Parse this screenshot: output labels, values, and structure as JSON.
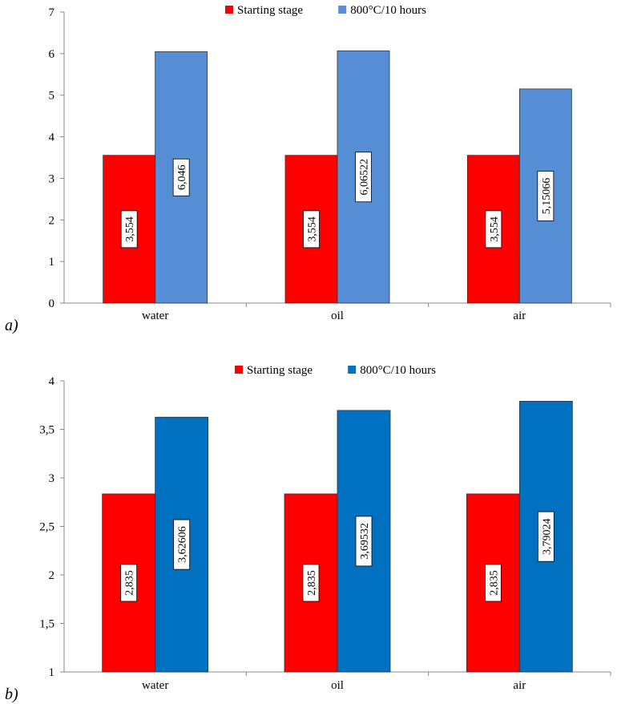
{
  "panels": [
    {
      "label": "a)",
      "legend": [
        {
          "name": "Starting stage",
          "color": "#ff0000"
        },
        {
          "name": "800°C/10 hours",
          "color": "#558ed5"
        }
      ],
      "chart_data": {
        "type": "bar",
        "categories": [
          "water",
          "oil",
          "air"
        ],
        "series": [
          {
            "name": "Starting stage",
            "values": [
              3.554,
              3.554,
              3.554
            ],
            "labels": [
              "3,554",
              "3,554",
              "3,554"
            ]
          },
          {
            "name": "800°C/10 hours",
            "values": [
              6.046,
              6.06522,
              5.15066
            ],
            "labels": [
              "6,046",
              "6,06522",
              "5,15066"
            ]
          }
        ],
        "ylim": [
          0,
          7
        ],
        "yticks": [
          0,
          1,
          2,
          3,
          4,
          5,
          6,
          7
        ],
        "ytick_labels": [
          "0",
          "1",
          "2",
          "3",
          "4",
          "5",
          "6",
          "7"
        ],
        "grid": false,
        "legend_position": "top-center"
      }
    },
    {
      "label": "b)",
      "legend": [
        {
          "name": "Starting stage",
          "color": "#ff0000"
        },
        {
          "name": "800°C/10 hours",
          "color": "#0070c0"
        }
      ],
      "chart_data": {
        "type": "bar",
        "categories": [
          "water",
          "oil",
          "air"
        ],
        "series": [
          {
            "name": "Starting stage",
            "values": [
              2.835,
              2.835,
              2.835
            ],
            "labels": [
              "2,835",
              "2,835",
              "2,835"
            ]
          },
          {
            "name": "800°C/10 hours",
            "values": [
              3.62606,
              3.69532,
              3.79024
            ],
            "labels": [
              "3,62606",
              "3,69532",
              "3,79024"
            ]
          }
        ],
        "ylim": [
          1,
          4
        ],
        "yticks": [
          1,
          1.5,
          2,
          2.5,
          3,
          3.5,
          4
        ],
        "ytick_labels": [
          "1",
          "1,5",
          "2",
          "2,5",
          "3",
          "3,5",
          "4"
        ],
        "grid": false,
        "legend_position": "top-center"
      }
    }
  ]
}
